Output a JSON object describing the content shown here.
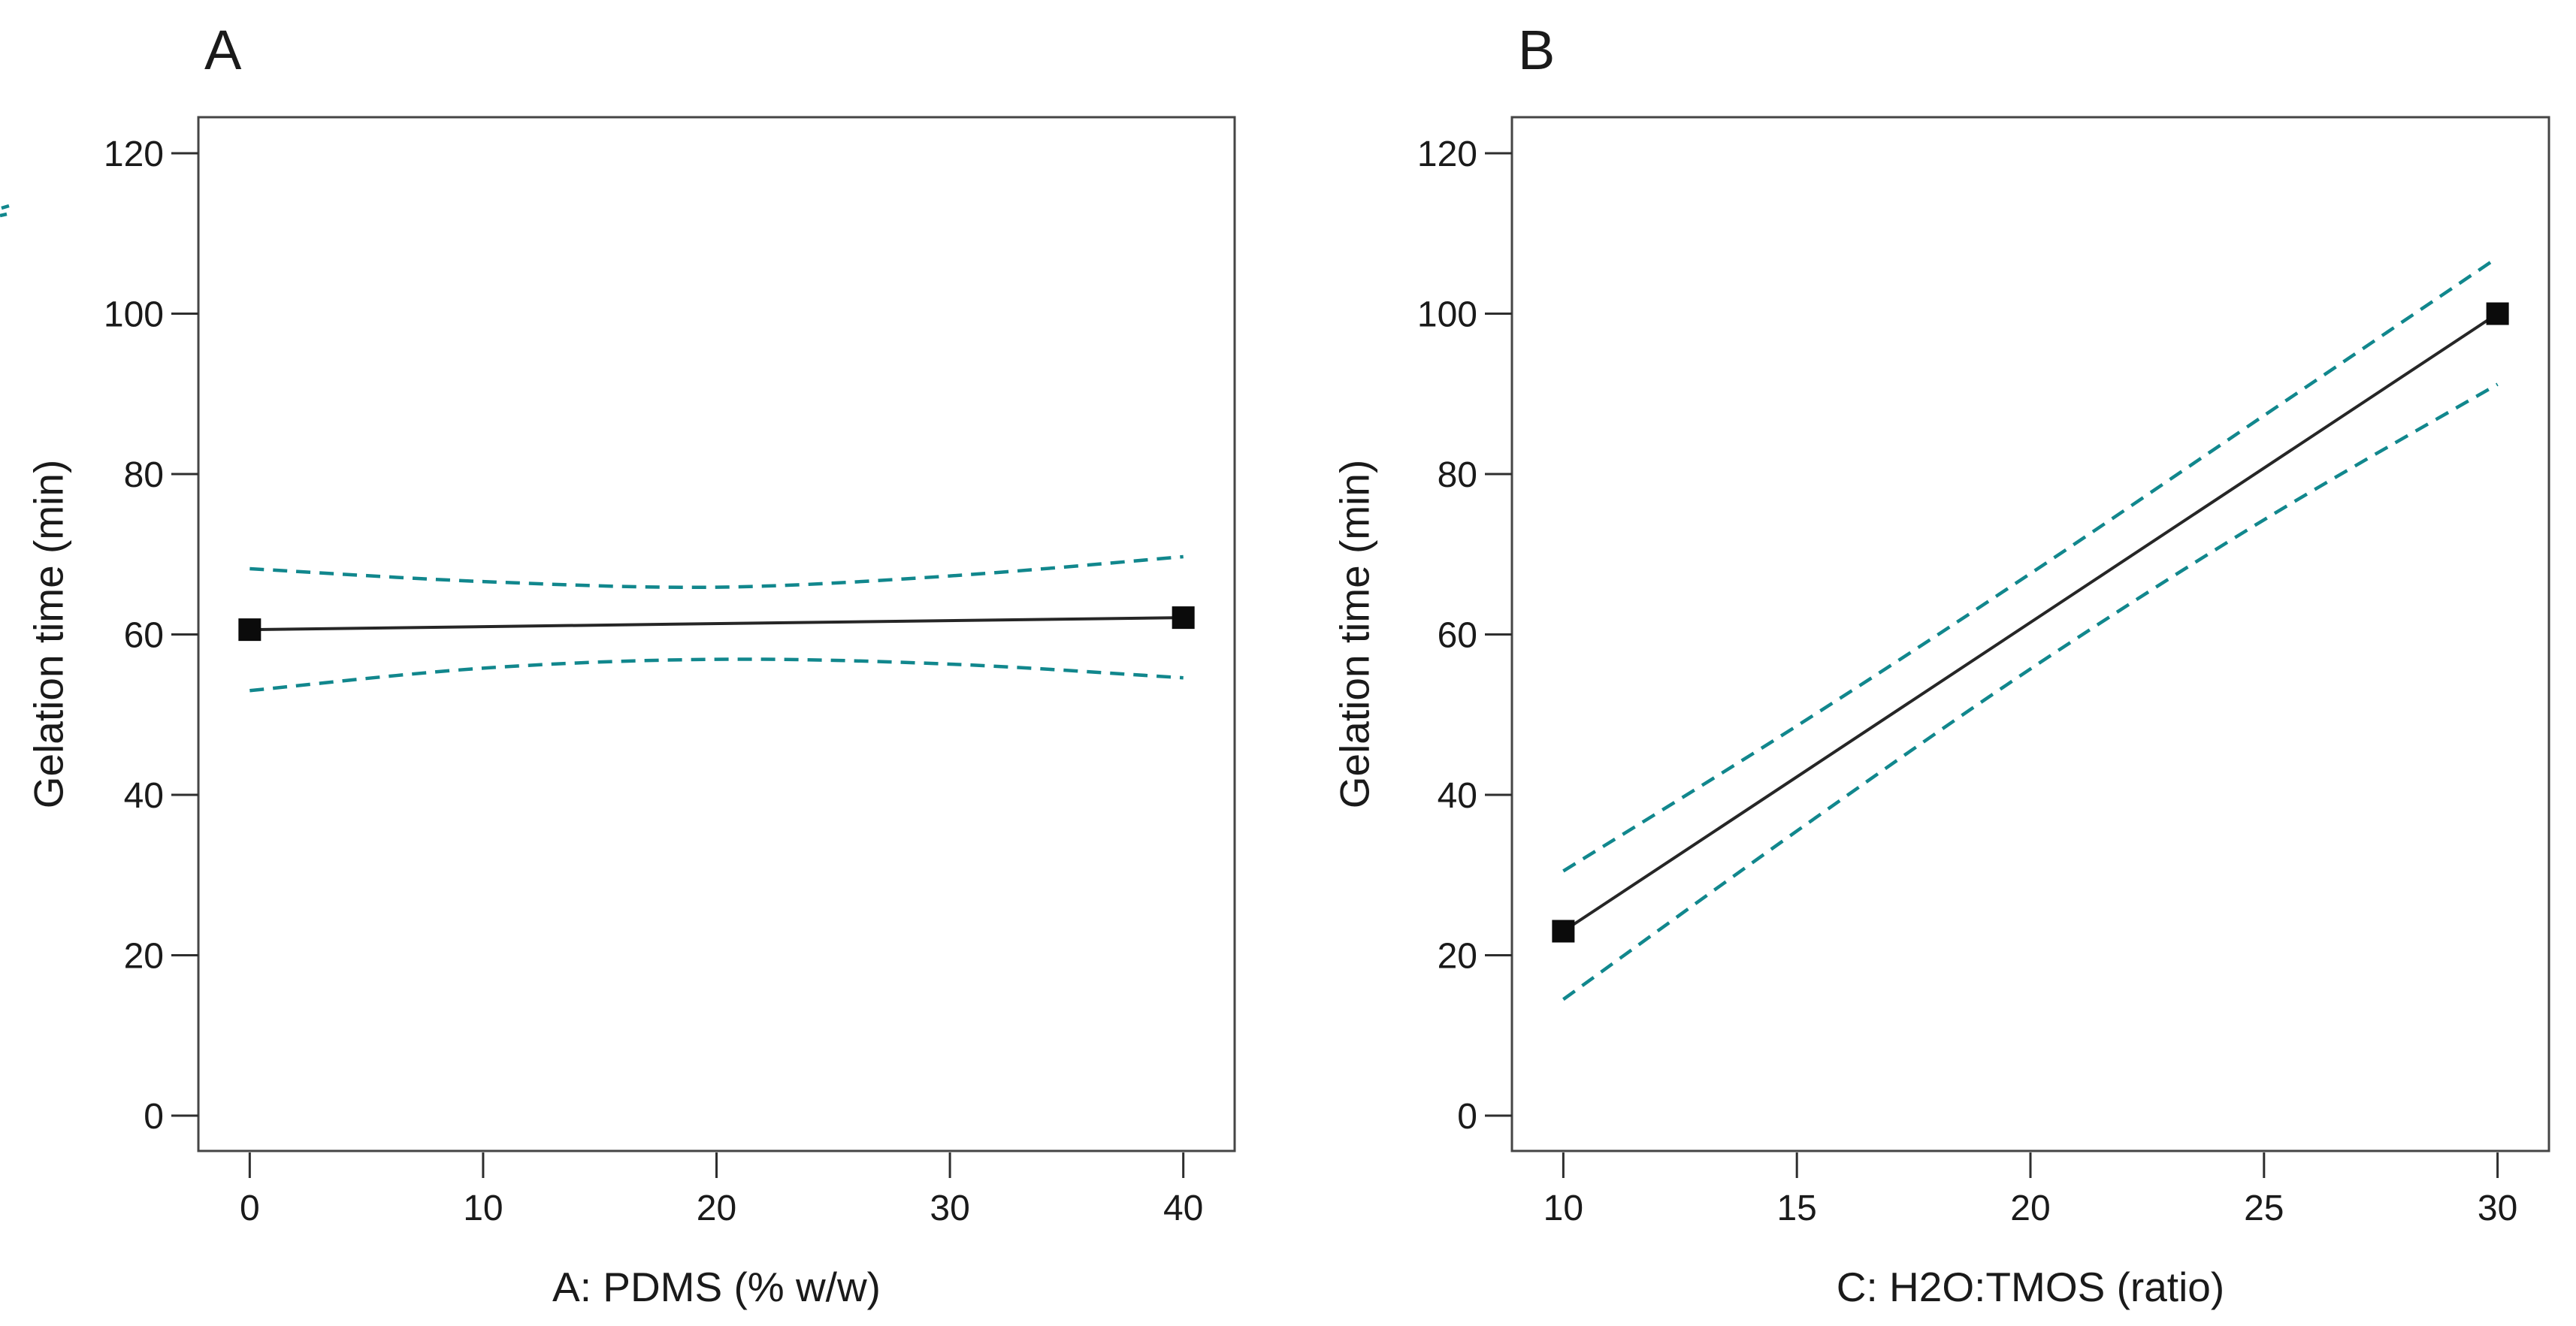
{
  "figure": {
    "background": "#ffffff",
    "colors": {
      "band_dash": "#11878d",
      "fit_line": "#262626",
      "marker": "#0b0b0b",
      "frame": "#454545",
      "tick": "#2e2e2e",
      "text": "#1a1a1a"
    },
    "left_edge_artifact": true
  },
  "chart_data": [
    {
      "type": "line",
      "panel_label": "A",
      "xlabel": "A: PDMS (% w/w)",
      "ylabel": "Gelation time (min)",
      "x_ticks": [
        0,
        10,
        20,
        30,
        40
      ],
      "y_ticks": [
        120,
        100,
        80,
        60,
        40,
        20,
        0
      ],
      "xlim": [
        -2.2,
        42.2
      ],
      "ylim": [
        -4.4,
        124.5
      ],
      "grid": false,
      "legend": null,
      "series": [
        {
          "name": "predicted-mean",
          "style": "solid",
          "marker": "square",
          "points": [
            [
              0,
              60.6
            ],
            [
              40,
              62.1
            ]
          ]
        },
        {
          "name": "ci-upper",
          "style": "dashed",
          "marker": null,
          "points": [
            [
              0,
              68.2
            ],
            [
              10,
              66.6
            ],
            [
              20,
              65.9
            ],
            [
              30,
              67.3
            ],
            [
              40,
              69.7
            ]
          ]
        },
        {
          "name": "ci-lower",
          "style": "dashed",
          "marker": null,
          "points": [
            [
              0,
              53.0
            ],
            [
              10,
              55.8
            ],
            [
              20,
              56.9
            ],
            [
              30,
              56.3
            ],
            [
              40,
              54.6
            ]
          ]
        }
      ]
    },
    {
      "type": "line",
      "panel_label": "B",
      "xlabel": "C: H2O:TMOS (ratio)",
      "ylabel": "Gelation time (min)",
      "x_ticks": [
        10,
        15,
        20,
        25,
        30
      ],
      "y_ticks": [
        120,
        100,
        80,
        60,
        40,
        20,
        0
      ],
      "xlim": [
        8.9,
        31.1
      ],
      "ylim": [
        -4.4,
        124.5
      ],
      "grid": false,
      "legend": null,
      "series": [
        {
          "name": "predicted-mean",
          "style": "solid",
          "marker": "square",
          "points": [
            [
              10,
              23
            ],
            [
              30,
              100
            ]
          ]
        },
        {
          "name": "ci-upper",
          "style": "dashed",
          "marker": null,
          "points": [
            [
              10,
              30.5
            ],
            [
              15,
              48.6
            ],
            [
              20,
              67.6
            ],
            [
              25,
              87.3
            ],
            [
              30,
              107
            ]
          ]
        },
        {
          "name": "ci-lower",
          "style": "dashed",
          "marker": null,
          "points": [
            [
              10,
              14.5
            ],
            [
              15,
              35.5
            ],
            [
              20,
              55.7
            ],
            [
              25,
              74.3
            ],
            [
              30,
              91.2
            ]
          ]
        }
      ]
    }
  ]
}
